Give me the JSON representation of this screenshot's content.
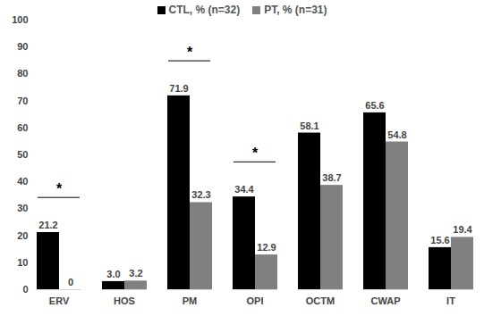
{
  "chart_data": {
    "type": "bar",
    "categories": [
      "ERV",
      "HOS",
      "PM",
      "OPI",
      "OCTM",
      "CWAP",
      "IT"
    ],
    "series": [
      {
        "name": "CTL, % (n=32)",
        "color": "#000000",
        "values": [
          21.2,
          3.0,
          71.9,
          34.4,
          58.1,
          65.6,
          15.6
        ],
        "value_labels": [
          "21.2",
          "3.0",
          "71.9",
          "34.4",
          "58.1",
          "65.6",
          "15.6"
        ]
      },
      {
        "name": "PT, % (n=31)",
        "color": "#808080",
        "values": [
          0,
          3.2,
          32.3,
          12.9,
          38.7,
          54.8,
          19.4
        ],
        "value_labels": [
          "0",
          "3.2",
          "32.3",
          "12.9",
          "38.7",
          "54.8",
          "19.4"
        ]
      }
    ],
    "ylim": [
      0,
      100
    ],
    "yticks": [
      0,
      10,
      20,
      30,
      40,
      50,
      60,
      70,
      80,
      90,
      100
    ],
    "grid": false,
    "legend": "top",
    "data_labels": true,
    "annotations": [
      {
        "category": "ERV",
        "text": "*"
      },
      {
        "category": "PM",
        "text": "*"
      },
      {
        "category": "OPI",
        "text": "*"
      }
    ]
  }
}
